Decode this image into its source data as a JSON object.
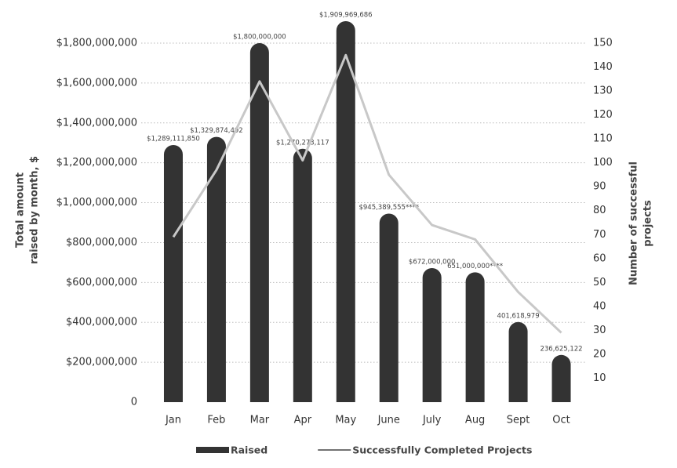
{
  "chart_data": {
    "type": "bar_line",
    "categories": [
      "Jan",
      "Feb",
      "Mar",
      "Apr",
      "May",
      "June",
      "July",
      "Aug",
      "Sept",
      "Oct"
    ],
    "series": [
      {
        "name": "Raised",
        "type": "bar",
        "color": "#333333",
        "axis": "y",
        "values": [
          1289111850,
          1329874492,
          1800000000,
          1270273117,
          1909969686,
          945389555,
          672000000,
          651000000,
          401618979,
          236625122
        ],
        "value_labels": [
          "$1,289,111,850",
          "$1,329,874,492",
          "$1,800,000,000",
          "$1,270,273,117",
          "$1,909,969,686",
          "$945,389,555****",
          "$672,000,000",
          "651,000,000****",
          "401,618,979",
          "236,625,122"
        ]
      },
      {
        "name": "Successfully Completed Projects",
        "type": "line",
        "color": "#c8c8c8",
        "axis": "y2",
        "values": [
          69,
          97,
          134,
          101,
          145,
          95,
          74,
          68,
          46,
          29
        ]
      }
    ],
    "ylabel_lines": [
      "Total amount",
      "raised by month, $"
    ],
    "y2label_lines": [
      "Number of successful",
      "projects"
    ],
    "ylim": [
      0,
      1800000000
    ],
    "yticks": [
      0,
      {
        "value": 200000000,
        "label": "$200,000,000"
      },
      {
        "value": 400000000,
        "label": "$400,000,000"
      },
      {
        "value": 600000000,
        "label": "$600,000,000"
      },
      {
        "value": 800000000,
        "label": "$800,000,000"
      },
      {
        "value": 1000000000,
        "label": "$1,000,000,000"
      },
      {
        "value": 1200000000,
        "label": "$1,200,000,000"
      },
      {
        "value": 1400000000,
        "label": "$1,400,000,000"
      },
      {
        "value": 1600000000,
        "label": "$1,600,000,000"
      },
      {
        "value": 1800000000,
        "label": "$1,800,000,000"
      }
    ],
    "y2lim": [
      0,
      150
    ],
    "y2ticks": [
      10,
      20,
      30,
      40,
      50,
      60,
      70,
      80,
      90,
      100,
      110,
      120,
      130,
      140,
      150
    ],
    "grid": true,
    "legend": "bottom"
  }
}
